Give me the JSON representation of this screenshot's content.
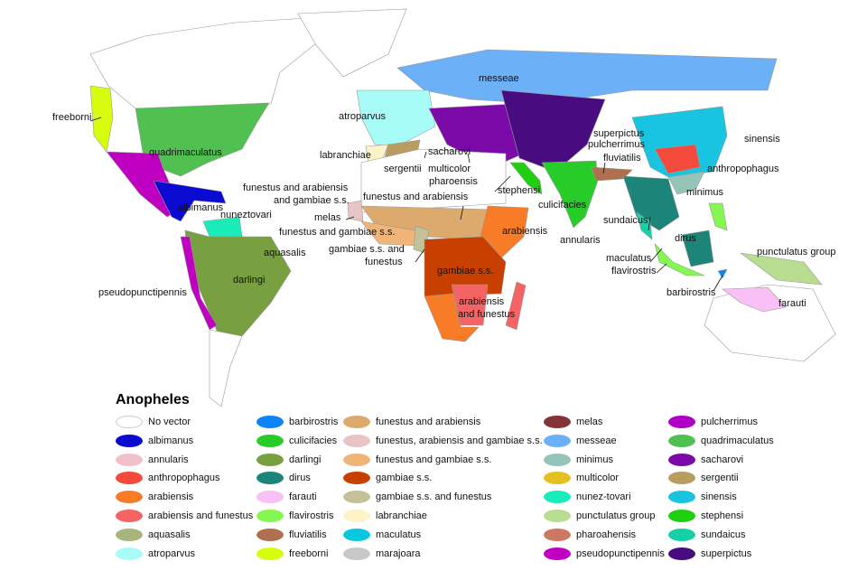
{
  "legend": {
    "title": "Anopheles",
    "columns": [
      [
        {
          "label": "No vector",
          "color": "#ffffff"
        },
        {
          "label": "albimanus",
          "color": "#0a0ad0"
        },
        {
          "label": "annularis",
          "color": "#f0c0c8"
        },
        {
          "label": "anthropophagus",
          "color": "#f44a3c"
        },
        {
          "label": "arabiensis",
          "color": "#f87c28"
        },
        {
          "label": "arabiensis and funestus",
          "color": "#f46464"
        },
        {
          "label": "aquasalis",
          "color": "#a8b47c"
        },
        {
          "label": "atroparvus",
          "color": "#a8fcf8"
        }
      ],
      [
        {
          "label": "barbirostris",
          "color": "#0c84f8"
        },
        {
          "label": "culicifacies",
          "color": "#28cc28"
        },
        {
          "label": "darlingi",
          "color": "#78a040"
        },
        {
          "label": "dirus",
          "color": "#1c8478"
        },
        {
          "label": "farauti",
          "color": "#f8c0f4"
        },
        {
          "label": "flavirostris",
          "color": "#84f850"
        },
        {
          "label": "fluviatilis",
          "color": "#b07050"
        },
        {
          "label": "freeborni",
          "color": "#d8fc10"
        }
      ],
      [
        {
          "label": "funestus and arabiensis",
          "color": "#dcaa6c"
        },
        {
          "label": "funestus, arabiensis and gambiae s.s.",
          "color": "#e8c4c4"
        },
        {
          "label": "funestus and gambiae s.s.",
          "color": "#f0b478"
        },
        {
          "label": "gambiae s.s.",
          "color": "#c84000"
        },
        {
          "label": "gambiae s.s. and funestus",
          "color": "#c4c098"
        },
        {
          "label": "labranchiae",
          "color": "#fcf4c8"
        },
        {
          "label": "maculatus",
          "color": "#08c8e0"
        },
        {
          "label": "marajoara",
          "color": "#c8c8c8"
        }
      ],
      [
        {
          "label": "melas",
          "color": "#843434"
        },
        {
          "label": "messeae",
          "color": "#6cb0f8"
        },
        {
          "label": "minimus",
          "color": "#94c4b8"
        },
        {
          "label": "multicolor",
          "color": "#e4c020"
        },
        {
          "label": "nunez-tovari",
          "color": "#18ecb8"
        },
        {
          "label": "punctulatus group",
          "color": "#b8dc90"
        },
        {
          "label": "pharoahensis",
          "color": "#cc7864"
        },
        {
          "label": "pseudopunctipennis",
          "color": "#c000c0"
        }
      ],
      [
        {
          "label": "pulcherrimus",
          "color": "#b000c8"
        },
        {
          "label": "quadrimaculatus",
          "color": "#50c050"
        },
        {
          "label": "sacharovi",
          "color": "#7c0aa8"
        },
        {
          "label": "sergentii",
          "color": "#b89c60"
        },
        {
          "label": "sinensis",
          "color": "#18c4e0"
        },
        {
          "label": "stephensi",
          "color": "#20d010"
        },
        {
          "label": "sundaicus",
          "color": "#18d0a8"
        },
        {
          "label": "superpictus",
          "color": "#480c80"
        }
      ]
    ]
  },
  "map_labels": {
    "freeborni": "freeborni",
    "quadrimaculatus": "quadrimaculatus",
    "albimanus": "albimanus",
    "nuneztovari": "nuneztovari",
    "aquasalis": "aquasalis",
    "darlingi": "darlingi",
    "pseudopunctipennis": "pseudopunctipennis",
    "atroparvus": "atroparvus",
    "messeae": "messeae",
    "labranchiae": "labranchiae",
    "sergentii": "sergentii",
    "sacharovi": "sacharovi",
    "multicolor": "multicolor",
    "pharoensis": "pharoensis",
    "superpictus": "superpictus",
    "pulcherrimus": "pulcherrimus",
    "fluviatilis": "fluviatilis",
    "sinensis": "sinensis",
    "anthropophagus": "anthropophagus",
    "minimus": "minimus",
    "stephensi": "stephensi",
    "culicifacies": "culicifacies",
    "funestus_arab_gamb_1": "funestus and arabiensis",
    "funestus_arab_gamb_2": "and gambiae s.s.",
    "melas": "melas",
    "funestus_arabiensis": "funestus and arabiensis",
    "funestus_gambiae": "funestus and gambiae s.s.",
    "arabiensis": "arabiensis",
    "gambiae_funestus_1": "gambiae s.s. and",
    "gambiae_funestus_2": "funestus",
    "gambiae": "gambiae s.s.",
    "arabiensis_funestus_1": "arabiensis",
    "arabiensis_funestus_2": "and funestus",
    "sundaicus": "sundaicus",
    "annularis": "annularis",
    "dirus": "dirus",
    "maculatus": "maculatus",
    "flavirostris": "flavirostris",
    "punctulatus": "punctulatus group",
    "barbirostris": "barbirostris",
    "farauti": "farauti"
  }
}
